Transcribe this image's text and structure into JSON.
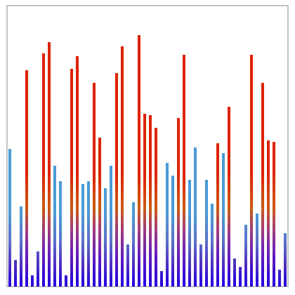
{
  "chart_data": {
    "type": "bar",
    "values": [
      49,
      9.5,
      28.5,
      77,
      4,
      12.5,
      83,
      87,
      43,
      37.5,
      4,
      77.5,
      82,
      36.5,
      37.5,
      72.5,
      53,
      35,
      43,
      76,
      85.5,
      15,
      30,
      89.5,
      61.5,
      61,
      56.5,
      5.5,
      44,
      39.5,
      60,
      82.5,
      38,
      49.5,
      15,
      38,
      29.5,
      51,
      47.5,
      64,
      10,
      7,
      22,
      82.5,
      26,
      72.5,
      52,
      51.5,
      6,
      19
    ],
    "colors": [
      "#4a9ad6",
      "#4a9ad6",
      "#4a9ad6",
      "#dd2200",
      "#4a9ad6",
      "#4a9ad6",
      "#dd2200",
      "#dd2200",
      "#4a9ad6",
      "#4a9ad6",
      "#4a9ad6",
      "#dd2200",
      "#dd2200",
      "#4a9ad6",
      "#4a9ad6",
      "#dd2200",
      "#dd2200",
      "#4a9ad6",
      "#4a9ad6",
      "#dd2200",
      "#dd2200",
      "#4a9ad6",
      "#4a9ad6",
      "#dd2200",
      "#dd2200",
      "#dd2200",
      "#dd2200",
      "#4a9ad6",
      "#4a9ad6",
      "#4a9ad6",
      "#dd2200",
      "#dd2200",
      "#4a9ad6",
      "#4a9ad6",
      "#4a9ad6",
      "#4a9ad6",
      "#4a9ad6",
      "#dd2200",
      "#4a9ad6",
      "#dd2200",
      "#4a9ad6",
      "#4a9ad6",
      "#4a9ad6",
      "#dd2200",
      "#4a9ad6",
      "#dd2200",
      "#dd2200",
      "#dd2200",
      "#4a9ad6",
      "#4a9ad6"
    ],
    "ylim": [
      0,
      100
    ]
  }
}
